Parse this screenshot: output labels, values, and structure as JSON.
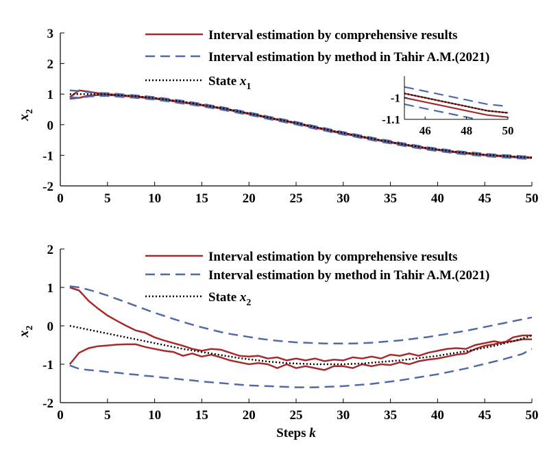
{
  "colors": {
    "red": "#a52a2a",
    "blue": "#4f6aab",
    "black": "#000000",
    "axis": "#000000"
  },
  "chart_data": [
    {
      "type": "line",
      "ylabel": "x",
      "ylabel_sub": "2",
      "xlim": [
        0,
        50
      ],
      "ylim": [
        -2,
        3
      ],
      "xticks": [
        "0",
        "5",
        "10",
        "15",
        "20",
        "25",
        "30",
        "35",
        "40",
        "45",
        "50"
      ],
      "yticks": [
        "-2",
        "-1",
        "0",
        "1",
        "2",
        "3"
      ],
      "legend_position": "top-right",
      "legend": [
        {
          "label": "Interval estimation by comprehensive results",
          "style": "solid",
          "color": "#a52a2a"
        },
        {
          "label": "Interval estimation by method in Tahir A.M.(2021)",
          "style": "dashed",
          "color": "#4f6aab"
        },
        {
          "label": "State x",
          "sub": "1",
          "style": "dotted",
          "color": "#000000"
        }
      ],
      "x": [
        1,
        2,
        3,
        4,
        5,
        6,
        7,
        8,
        9,
        10,
        11,
        12,
        13,
        14,
        15,
        16,
        17,
        18,
        19,
        20,
        21,
        22,
        23,
        24,
        25,
        26,
        27,
        28,
        29,
        30,
        31,
        32,
        33,
        34,
        35,
        36,
        37,
        38,
        39,
        40,
        41,
        42,
        43,
        44,
        45,
        46,
        47,
        48,
        49,
        50
      ],
      "series": [
        {
          "role": "est-upper",
          "style": "solid",
          "color": "#a52a2a",
          "values": [
            0.9,
            1.12,
            1.08,
            1.03,
            1.0,
            0.98,
            0.95,
            0.93,
            0.9,
            0.87,
            0.83,
            0.79,
            0.74,
            0.7,
            0.65,
            0.6,
            0.55,
            0.49,
            0.43,
            0.37,
            0.31,
            0.24,
            0.18,
            0.12,
            0.06,
            -0.01,
            -0.08,
            -0.14,
            -0.21,
            -0.27,
            -0.33,
            -0.39,
            -0.45,
            -0.51,
            -0.56,
            -0.62,
            -0.67,
            -0.72,
            -0.77,
            -0.81,
            -0.85,
            -0.89,
            -0.92,
            -0.95,
            -0.98,
            -1.0,
            -1.02,
            -1.04,
            -1.06,
            -1.07
          ]
        },
        {
          "role": "est-lower",
          "style": "solid",
          "color": "#a52a2a",
          "values": [
            0.85,
            0.88,
            0.95,
            0.97,
            0.97,
            0.95,
            0.93,
            0.91,
            0.88,
            0.85,
            0.81,
            0.77,
            0.72,
            0.68,
            0.63,
            0.58,
            0.53,
            0.47,
            0.41,
            0.35,
            0.29,
            0.22,
            0.16,
            0.1,
            0.04,
            -0.03,
            -0.1,
            -0.16,
            -0.23,
            -0.29,
            -0.35,
            -0.41,
            -0.47,
            -0.53,
            -0.58,
            -0.64,
            -0.69,
            -0.74,
            -0.79,
            -0.83,
            -0.87,
            -0.91,
            -0.94,
            -0.97,
            -1.0,
            -1.02,
            -1.04,
            -1.06,
            -1.08,
            -1.09
          ]
        },
        {
          "role": "tahir-upper",
          "style": "dashed",
          "color": "#4f6aab",
          "values": [
            1.12,
            1.1,
            1.06,
            1.04,
            1.03,
            1.01,
            0.98,
            0.96,
            0.93,
            0.9,
            0.86,
            0.82,
            0.78,
            0.73,
            0.68,
            0.63,
            0.58,
            0.52,
            0.46,
            0.4,
            0.34,
            0.27,
            0.21,
            0.15,
            0.09,
            0.02,
            -0.05,
            -0.11,
            -0.18,
            -0.24,
            -0.3,
            -0.36,
            -0.42,
            -0.48,
            -0.53,
            -0.59,
            -0.64,
            -0.69,
            -0.74,
            -0.78,
            -0.82,
            -0.86,
            -0.89,
            -0.92,
            -0.95,
            -0.97,
            -0.99,
            -1.01,
            -1.03,
            -1.04
          ]
        },
        {
          "role": "tahir-lower",
          "style": "dashed",
          "color": "#4f6aab",
          "values": [
            0.9,
            0.88,
            0.92,
            0.94,
            0.94,
            0.92,
            0.9,
            0.88,
            0.85,
            0.82,
            0.78,
            0.74,
            0.69,
            0.65,
            0.6,
            0.55,
            0.5,
            0.44,
            0.38,
            0.32,
            0.26,
            0.19,
            0.13,
            0.07,
            0.01,
            -0.06,
            -0.13,
            -0.19,
            -0.26,
            -0.32,
            -0.38,
            -0.44,
            -0.5,
            -0.56,
            -0.61,
            -0.67,
            -0.72,
            -0.77,
            -0.82,
            -0.86,
            -0.9,
            -0.94,
            -0.97,
            -1.0,
            -1.03,
            -1.05,
            -1.07,
            -1.09,
            -1.11,
            -1.12
          ]
        },
        {
          "role": "state",
          "style": "dotted",
          "color": "#000000",
          "values": [
            1.0,
            1.0,
            1.0,
            1.0,
            0.99,
            0.97,
            0.95,
            0.93,
            0.9,
            0.87,
            0.83,
            0.79,
            0.75,
            0.7,
            0.65,
            0.6,
            0.55,
            0.49,
            0.43,
            0.37,
            0.31,
            0.24,
            0.18,
            0.12,
            0.06,
            -0.01,
            -0.08,
            -0.14,
            -0.21,
            -0.27,
            -0.33,
            -0.39,
            -0.45,
            -0.51,
            -0.56,
            -0.62,
            -0.67,
            -0.72,
            -0.77,
            -0.81,
            -0.85,
            -0.89,
            -0.92,
            -0.95,
            -0.98,
            -1.0,
            -1.02,
            -1.04,
            -1.06,
            -1.07
          ]
        }
      ],
      "inset": {
        "xlim": [
          45,
          50
        ],
        "ylim": [
          -1.1,
          -0.9
        ],
        "xticks": [
          "46",
          "48",
          "50"
        ],
        "yticks": [
          "-1",
          "-1.1"
        ]
      }
    },
    {
      "type": "line",
      "ylabel": "x",
      "ylabel_sub": "2",
      "xlabel": "Steps",
      "xlabel_var": "k",
      "xlim": [
        0,
        50
      ],
      "ylim": [
        -2,
        2
      ],
      "xticks": [
        "0",
        "5",
        "10",
        "15",
        "20",
        "25",
        "30",
        "35",
        "40",
        "45",
        "50"
      ],
      "yticks": [
        "-2",
        "-1",
        "0",
        "1",
        "2"
      ],
      "legend_position": "top-right",
      "legend": [
        {
          "label": "Interval estimation by comprehensive results",
          "style": "solid",
          "color": "#a52a2a"
        },
        {
          "label": "Interval estimation by method in Tahir A.M.(2021)",
          "style": "dashed",
          "color": "#4f6aab"
        },
        {
          "label": "State x",
          "sub": "2",
          "style": "dotted",
          "color": "#000000"
        }
      ],
      "x": [
        1,
        2,
        3,
        4,
        5,
        6,
        7,
        8,
        9,
        10,
        11,
        12,
        13,
        14,
        15,
        16,
        17,
        18,
        19,
        20,
        21,
        22,
        23,
        24,
        25,
        26,
        27,
        28,
        29,
        30,
        31,
        32,
        33,
        34,
        35,
        36,
        37,
        38,
        39,
        40,
        41,
        42,
        43,
        44,
        45,
        46,
        47,
        48,
        49,
        50
      ],
      "series": [
        {
          "role": "est-upper",
          "style": "solid",
          "color": "#a52a2a",
          "values": [
            1.0,
            0.92,
            0.65,
            0.45,
            0.27,
            0.13,
            0.0,
            -0.12,
            -0.18,
            -0.3,
            -0.38,
            -0.45,
            -0.52,
            -0.6,
            -0.65,
            -0.6,
            -0.62,
            -0.7,
            -0.78,
            -0.8,
            -0.78,
            -0.85,
            -0.82,
            -0.9,
            -0.85,
            -0.9,
            -0.85,
            -0.92,
            -0.88,
            -0.9,
            -0.82,
            -0.85,
            -0.8,
            -0.85,
            -0.75,
            -0.78,
            -0.72,
            -0.78,
            -0.7,
            -0.65,
            -0.6,
            -0.58,
            -0.6,
            -0.5,
            -0.45,
            -0.4,
            -0.45,
            -0.3,
            -0.25,
            -0.25
          ]
        },
        {
          "role": "est-lower",
          "style": "solid",
          "color": "#a52a2a",
          "values": [
            -1.0,
            -0.7,
            -0.58,
            -0.53,
            -0.51,
            -0.49,
            -0.48,
            -0.48,
            -0.55,
            -0.6,
            -0.65,
            -0.68,
            -0.78,
            -0.72,
            -0.8,
            -0.75,
            -0.82,
            -0.9,
            -0.95,
            -1.0,
            -0.97,
            -1.0,
            -1.1,
            -1.0,
            -1.1,
            -1.05,
            -1.1,
            -1.15,
            -1.05,
            -1.05,
            -1.1,
            -1.0,
            -1.05,
            -1.0,
            -1.02,
            -0.95,
            -1.0,
            -0.92,
            -0.88,
            -0.85,
            -0.8,
            -0.75,
            -0.72,
            -0.6,
            -0.52,
            -0.48,
            -0.42,
            -0.4,
            -0.35,
            -0.35
          ]
        },
        {
          "role": "tahir-upper",
          "style": "dashed",
          "color": "#4f6aab",
          "values": [
            1.03,
            1.0,
            0.94,
            0.87,
            0.79,
            0.7,
            0.61,
            0.52,
            0.43,
            0.34,
            0.26,
            0.18,
            0.1,
            0.03,
            -0.04,
            -0.1,
            -0.16,
            -0.21,
            -0.25,
            -0.29,
            -0.33,
            -0.36,
            -0.39,
            -0.41,
            -0.43,
            -0.44,
            -0.45,
            -0.46,
            -0.46,
            -0.46,
            -0.46,
            -0.45,
            -0.44,
            -0.42,
            -0.4,
            -0.38,
            -0.35,
            -0.32,
            -0.29,
            -0.25,
            -0.21,
            -0.17,
            -0.13,
            -0.08,
            -0.03,
            0.02,
            0.07,
            0.12,
            0.17,
            0.22
          ]
        },
        {
          "role": "tahir-lower",
          "style": "dashed",
          "color": "#4f6aab",
          "values": [
            -1.03,
            -1.12,
            -1.15,
            -1.17,
            -1.2,
            -1.22,
            -1.25,
            -1.27,
            -1.3,
            -1.32,
            -1.35,
            -1.37,
            -1.4,
            -1.42,
            -1.45,
            -1.47,
            -1.49,
            -1.51,
            -1.53,
            -1.55,
            -1.56,
            -1.57,
            -1.58,
            -1.59,
            -1.6,
            -1.6,
            -1.6,
            -1.59,
            -1.58,
            -1.57,
            -1.55,
            -1.53,
            -1.51,
            -1.48,
            -1.45,
            -1.42,
            -1.38,
            -1.34,
            -1.3,
            -1.26,
            -1.21,
            -1.16,
            -1.11,
            -1.05,
            -0.99,
            -0.93,
            -0.87,
            -0.8,
            -0.73,
            -0.6
          ]
        },
        {
          "role": "state",
          "style": "dotted",
          "color": "#000000",
          "values": [
            0.0,
            -0.05,
            -0.1,
            -0.15,
            -0.2,
            -0.25,
            -0.3,
            -0.35,
            -0.4,
            -0.45,
            -0.5,
            -0.55,
            -0.6,
            -0.64,
            -0.68,
            -0.72,
            -0.76,
            -0.8,
            -0.84,
            -0.87,
            -0.9,
            -0.93,
            -0.95,
            -0.97,
            -0.98,
            -0.99,
            -1.0,
            -1.0,
            -1.0,
            -1.0,
            -0.99,
            -0.98,
            -0.96,
            -0.94,
            -0.92,
            -0.9,
            -0.87,
            -0.84,
            -0.81,
            -0.78,
            -0.74,
            -0.7,
            -0.66,
            -0.62,
            -0.57,
            -0.52,
            -0.46,
            -0.4,
            -0.33,
            -0.25
          ]
        }
      ]
    }
  ]
}
